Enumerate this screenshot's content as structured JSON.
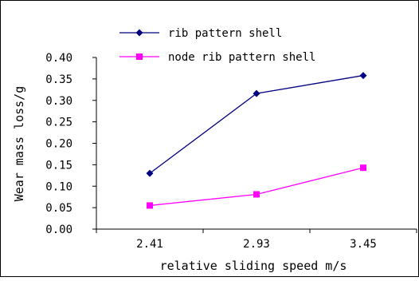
{
  "chart_data": {
    "type": "line",
    "title": "",
    "xlabel": "relative sliding speed m/s",
    "ylabel": "Wear mass loss/g",
    "categories": [
      "2.41",
      "2.93",
      "3.45"
    ],
    "ylim": [
      0,
      0.4
    ],
    "yticks": [
      "0.00",
      "0.05",
      "0.10",
      "0.15",
      "0.20",
      "0.25",
      "0.30",
      "0.35",
      "0.40"
    ],
    "grid": false,
    "legend_position": "top",
    "series": [
      {
        "name": "rib pattern shell",
        "values": [
          0.13,
          0.316,
          0.358
        ],
        "color": "#000080",
        "marker": "diamond"
      },
      {
        "name": "node rib pattern shell",
        "values": [
          0.055,
          0.081,
          0.143
        ],
        "color": "#ff00ff",
        "marker": "square"
      }
    ]
  }
}
